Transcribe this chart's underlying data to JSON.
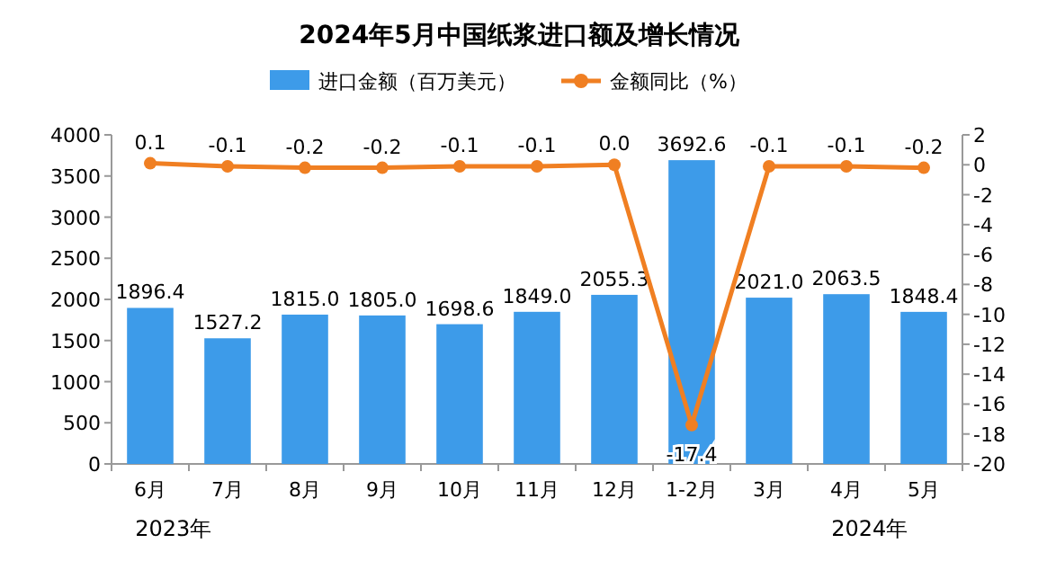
{
  "chart_data": {
    "type": "bar",
    "title": "2024年5月中国纸浆进口额及增长情况",
    "categories": [
      "6月",
      "7月",
      "8月",
      "9月",
      "10月",
      "11月",
      "12月",
      "1-2月",
      "3月",
      "4月",
      "5月"
    ],
    "series": [
      {
        "name": "进口金额（百万美元）",
        "color": "#3d9be9",
        "values": [
          1896.4,
          1527.2,
          1815.0,
          1805.0,
          1698.6,
          1849.0,
          2055.3,
          3692.6,
          2021.0,
          2063.5,
          1848.4
        ],
        "value_labels": [
          "1896.4",
          "1527.2",
          "1815.0",
          "1805.0",
          "1698.6",
          "1849.0",
          "2055.3",
          "3692.6",
          "2021.0",
          "2063.5",
          "1848.4"
        ]
      },
      {
        "name": "金额同比（%）",
        "type": "line",
        "axis": "y2",
        "color": "#f07f22",
        "marker": "circle",
        "values": [
          0.1,
          -0.1,
          -0.2,
          -0.2,
          -0.1,
          -0.1,
          0.0,
          -17.4,
          -0.1,
          -0.1,
          -0.2
        ],
        "value_labels": [
          "0.1",
          "-0.1",
          "-0.2",
          "-0.2",
          "-0.1",
          "-0.1",
          "0.0",
          "-17.4",
          "-0.1",
          "-0.1",
          "-0.2"
        ]
      }
    ],
    "ylim": [
      0,
      4000
    ],
    "yticks": [
      0,
      500,
      1000,
      1500,
      2000,
      2500,
      3000,
      3500,
      4000
    ],
    "y2lim": [
      -20,
      2
    ],
    "y2ticks": [
      -20,
      -18,
      -16,
      -14,
      -12,
      -10,
      -8,
      -6,
      -4,
      -2,
      0,
      2
    ],
    "legend": "top",
    "grid": false,
    "annotations": [
      "2023年",
      "2024年"
    ]
  }
}
